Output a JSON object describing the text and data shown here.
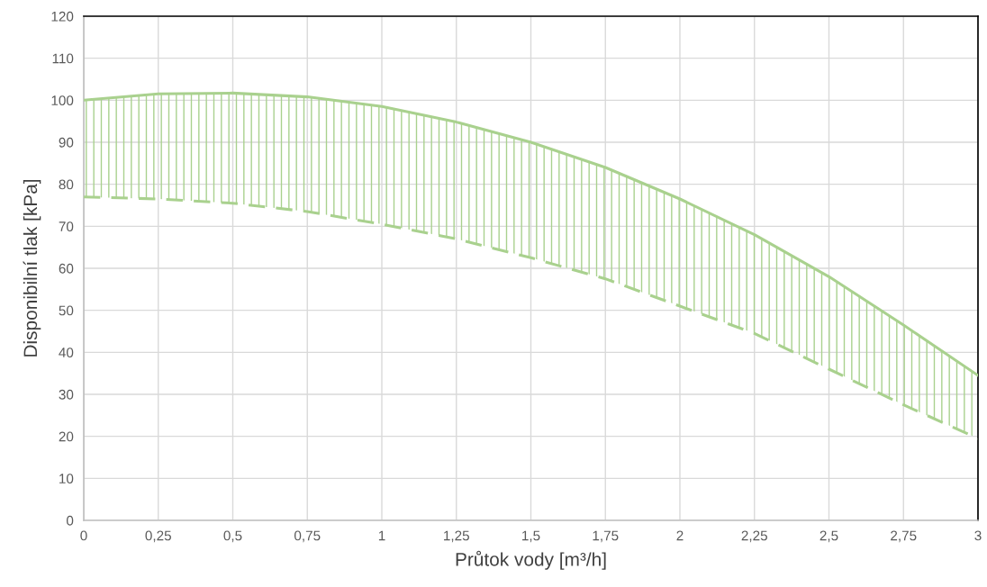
{
  "chart_data": {
    "type": "area",
    "xlabel": "Průtok vody [m³/h]",
    "ylabel": "Disponibilní tlak [kPa]",
    "x": [
      0,
      0.25,
      0.5,
      0.75,
      1,
      1.25,
      1.5,
      1.75,
      2,
      2.25,
      2.5,
      2.75,
      3
    ],
    "series": [
      {
        "color": "#a9d18e",
        "line_style": "solid",
        "values": [
          100,
          101.5,
          101.7,
          100.8,
          98.5,
          94.8,
          90,
          84,
          76.5,
          68,
          58,
          46.5,
          34.5
        ]
      },
      {
        "type": "line",
        "color": "#a9d18e",
        "line_style": "dashed",
        "values": [
          77,
          76.5,
          75.5,
          73.5,
          70.5,
          67,
          62.5,
          57.5,
          51,
          44.5,
          36,
          27.5,
          19.5
        ]
      }
    ],
    "xlim": [
      0,
      3
    ],
    "xticks": [
      0,
      {
        "value": 0.25,
        "label": "0,25"
      },
      {
        "value": 0.5,
        "label": "0,5"
      },
      {
        "value": 0.75,
        "label": "0,75"
      },
      1,
      {
        "value": 1.25,
        "label": "1,25"
      },
      {
        "value": 1.5,
        "label": "1,5"
      },
      {
        "value": 1.75,
        "label": "1,75"
      },
      2,
      {
        "value": 2.25,
        "label": "2,25"
      },
      {
        "value": 2.5,
        "label": "2,5"
      },
      {
        "value": 2.75,
        "label": "2,75"
      },
      3
    ],
    "ylim": [
      0,
      120
    ],
    "yticks": [
      0,
      10,
      20,
      30,
      40,
      50,
      60,
      70,
      80,
      90,
      100,
      110,
      120
    ],
    "grid": true,
    "legend": false
  }
}
